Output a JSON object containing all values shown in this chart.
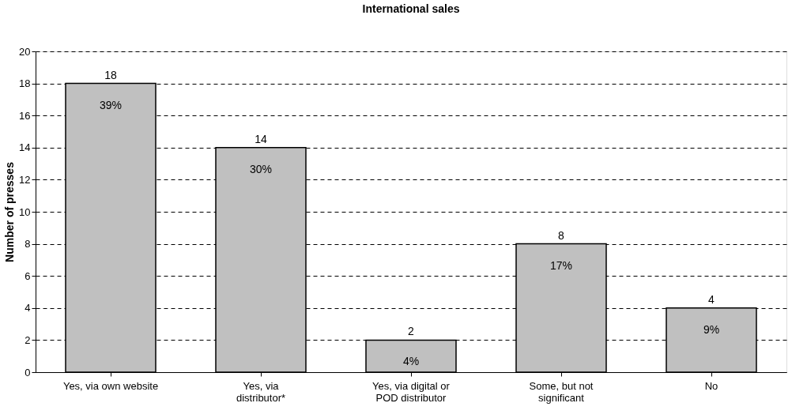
{
  "chart_data": {
    "type": "bar",
    "title": "International sales",
    "ylabel": "Number of presses",
    "categories": [
      "Yes, via own website",
      "Yes, via distributor*",
      "Yes, via digital or POD distributor",
      "Some, but not significant",
      "No"
    ],
    "values": [
      18,
      14,
      2,
      8,
      4
    ],
    "color": "#c0c0c0",
    "ylim": [
      0,
      20
    ],
    "yticks": [
      0,
      2,
      4,
      6,
      8,
      10,
      12,
      14,
      16,
      18,
      20
    ],
    "grid": "y",
    "data_labels": true,
    "annotations": [
      "39%",
      "30%",
      "4%",
      "17%",
      "9%"
    ]
  }
}
